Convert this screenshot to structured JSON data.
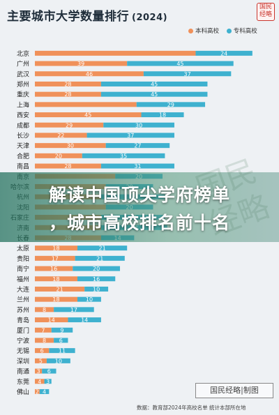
{
  "title": "主要城市大学数量排行",
  "year": "(2024)",
  "seal_text": "国民经略",
  "headline_line1": "解读中国顶尖学府榜单",
  "headline_line2": "，城市高校排名前十名",
  "watermark_text": "国民经略",
  "stamp_text": "国民经略|制图",
  "source": "数据：教育部2024年高校名单 统计本部所在地",
  "colors": {
    "benke": "#f0915a",
    "zhuanke": "#3eb1cf",
    "text": "#1f2d3a",
    "banner": "#1e6e5a"
  },
  "chart_data": {
    "type": "bar",
    "orientation": "horizontal",
    "stacked": true,
    "title": "主要城市大学数量排行",
    "legend_position": "top-right",
    "categories": [
      "北京",
      "广州",
      "武汉",
      "郑州",
      "重庆",
      "上海",
      "西安",
      "成都",
      "长沙",
      "天津",
      "合肥",
      "南昌",
      "南京",
      "哈尔滨",
      "杭州",
      "沈阳",
      "石家庄",
      "济南",
      "长春",
      "太原",
      "贵阳",
      "南宁",
      "福州",
      "大连",
      "兰州",
      "苏州",
      "青岛",
      "厦门",
      "宁波",
      "无锡",
      "深圳",
      "南通",
      "东莞",
      "佛山"
    ],
    "series": [
      {
        "name": "本科高校",
        "values": [
          68,
          39,
          46,
          28,
          28,
          43,
          45,
          29,
          22,
          30,
          20,
          28,
          34,
          30,
          28,
          30,
          28,
          28,
          28,
          18,
          17,
          16,
          18,
          21,
          18,
          8,
          14,
          7,
          8,
          6,
          5,
          3,
          4,
          2
        ]
      },
      {
        "name": "专科高校",
        "values": [
          24,
          45,
          37,
          45,
          45,
          29,
          18,
          30,
          37,
          27,
          35,
          31,
          20,
          20,
          27,
          20,
          27,
          28,
          14,
          21,
          21,
          20,
          16,
          10,
          10,
          17,
          14,
          9,
          6,
          11,
          10,
          6,
          3,
          4
        ]
      }
    ],
    "value_labels": [
      [
        "",
        "24"
      ],
      [
        "39",
        "45"
      ],
      [
        "46",
        "37"
      ],
      [
        "28",
        "45"
      ],
      [
        "28",
        "45"
      ],
      [
        "",
        "29"
      ],
      [
        "45",
        "18"
      ],
      [
        "29",
        "30"
      ],
      [
        "22",
        "37"
      ],
      [
        "30",
        "27"
      ],
      [
        "20",
        "35"
      ],
      [
        "28",
        "31"
      ],
      [
        "",
        "20"
      ],
      [
        "",
        "20"
      ],
      [
        "",
        "27"
      ],
      [
        "",
        "20"
      ],
      [
        "",
        "27"
      ],
      [
        "",
        "28"
      ],
      [
        "28",
        "14"
      ],
      [
        "18",
        "21"
      ],
      [
        "17",
        "21"
      ],
      [
        "16",
        "20"
      ],
      [
        "18",
        "16"
      ],
      [
        "21",
        "10"
      ],
      [
        "18",
        "10"
      ],
      [
        "8",
        "17"
      ],
      [
        "14",
        "14"
      ],
      [
        "7",
        "9"
      ],
      [
        "8",
        "6"
      ],
      [
        "6",
        "11"
      ],
      [
        "5",
        "10"
      ],
      [
        "3",
        "6"
      ],
      [
        "4",
        "3"
      ],
      [
        "2",
        "4"
      ]
    ],
    "xlim": [
      0,
      95
    ],
    "grid": false
  }
}
